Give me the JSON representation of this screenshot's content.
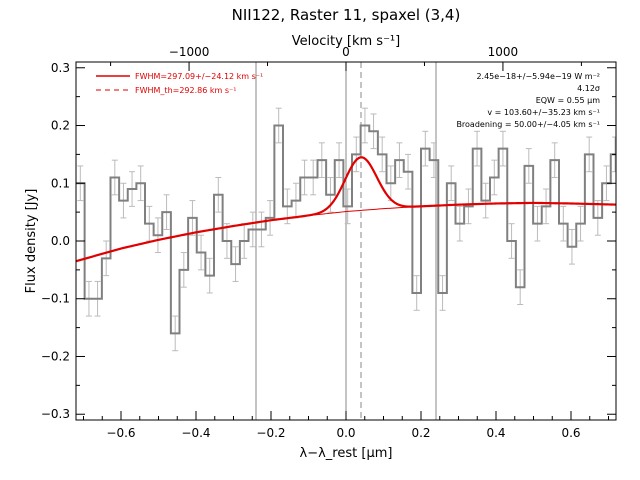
{
  "chart_data": {
    "type": "line",
    "title": "NII122, Raster 11, spaxel (3,4)",
    "xlabel": "λ−λ_rest [μm]",
    "ylabel": "Flux density [Jy]",
    "top_axis_label": "Velocity [km s⁻¹]",
    "xlim": [
      -0.72,
      0.72
    ],
    "ylim": [
      -0.31,
      0.31
    ],
    "x_ticks": [
      -0.6,
      -0.4,
      -0.2,
      0.0,
      0.2,
      0.4,
      0.6
    ],
    "x_tick_labels": [
      "−0.6",
      "−0.4",
      "−0.2",
      "0.0",
      "0.2",
      "0.4",
      "0.6"
    ],
    "y_ticks": [
      -0.3,
      -0.2,
      -0.1,
      0.0,
      0.1,
      0.2,
      0.3
    ],
    "y_tick_labels": [
      "−0.3",
      "−0.2",
      "−0.1",
      "0.0",
      "0.1",
      "0.2",
      "0.3"
    ],
    "top_ticks_x": [
      -0.4185,
      0.0,
      0.4185
    ],
    "top_tick_labels": [
      "−1000",
      "0",
      "1000"
    ],
    "vlines_solid": [
      -0.24,
      0.0,
      0.24
    ],
    "vline_dashed": 0.04,
    "legend": {
      "position": "top-left",
      "items": [
        {
          "label": "FWHM=297.09+/−24.12 km s⁻¹",
          "style": "solid",
          "color": "#e00000"
        },
        {
          "label": "FWHM_th=292.86 km s⁻¹",
          "style": "dashed",
          "color": "#e00000"
        }
      ]
    },
    "annotations": [
      "2.45e−18+/−5.94e−19 W m⁻²",
      "4.12σ",
      "EQW = 0.55 μm",
      "v = 103.60+/−35.23 km s⁻¹",
      "Broadening = 50.00+/−4.05 km s⁻¹"
    ],
    "colors": {
      "data": "#808080",
      "fit": "#e00000"
    },
    "series": [
      {
        "name": "data",
        "x": [
          -0.72,
          -0.697,
          -0.674,
          -0.651,
          -0.628,
          -0.605,
          -0.582,
          -0.559,
          -0.536,
          -0.513,
          -0.49,
          -0.467,
          -0.444,
          -0.421,
          -0.398,
          -0.375,
          -0.352,
          -0.329,
          -0.306,
          -0.283,
          -0.26,
          -0.237,
          -0.214,
          -0.191,
          -0.168,
          -0.145,
          -0.122,
          -0.099,
          -0.076,
          -0.053,
          -0.03,
          -0.007,
          0.016,
          0.039,
          0.062,
          0.085,
          0.108,
          0.131,
          0.154,
          0.177,
          0.2,
          0.223,
          0.246,
          0.269,
          0.292,
          0.315,
          0.338,
          0.361,
          0.384,
          0.407,
          0.43,
          0.453,
          0.476,
          0.499,
          0.522,
          0.545,
          0.568,
          0.591,
          0.614,
          0.637,
          0.66,
          0.683,
          0.706
        ],
        "y": [
          0.1,
          -0.1,
          -0.1,
          -0.03,
          0.11,
          0.07,
          0.09,
          0.1,
          0.03,
          0.01,
          0.05,
          -0.16,
          -0.05,
          0.04,
          -0.02,
          -0.06,
          0.08,
          0.0,
          -0.04,
          0.0,
          0.02,
          0.02,
          0.04,
          0.2,
          0.06,
          0.07,
          0.11,
          0.11,
          0.14,
          0.08,
          0.14,
          0.06,
          0.15,
          0.2,
          0.19,
          0.15,
          0.1,
          0.14,
          0.12,
          -0.09,
          0.16,
          0.14,
          -0.09,
          0.1,
          0.03,
          0.06,
          0.16,
          0.07,
          0.11,
          0.16,
          0.0,
          -0.08,
          0.13,
          0.03,
          0.06,
          0.14,
          0.03,
          -0.01,
          0.03,
          0.15,
          0.04,
          0.1,
          0.15
        ],
        "error": [
          0.03,
          0.03,
          0.03,
          0.03,
          0.03,
          0.03,
          0.03,
          0.03,
          0.03,
          0.03,
          0.03,
          0.03,
          0.03,
          0.03,
          0.03,
          0.03,
          0.03,
          0.03,
          0.03,
          0.03,
          0.03,
          0.03,
          0.03,
          0.03,
          0.03,
          0.03,
          0.03,
          0.03,
          0.03,
          0.03,
          0.03,
          0.03,
          0.03,
          0.03,
          0.03,
          0.03,
          0.03,
          0.03,
          0.03,
          0.03,
          0.03,
          0.03,
          0.03,
          0.03,
          0.03,
          0.03,
          0.03,
          0.03,
          0.03,
          0.03,
          0.03,
          0.03,
          0.03,
          0.03,
          0.03,
          0.03,
          0.03,
          0.03,
          0.03,
          0.03,
          0.03,
          0.03,
          0.03
        ]
      },
      {
        "name": "continuum",
        "x": [
          -0.72,
          -0.6,
          -0.5,
          -0.4,
          -0.3,
          -0.2,
          -0.1,
          0.0,
          0.1,
          0.2,
          0.3,
          0.4,
          0.5,
          0.6,
          0.72
        ],
        "y": [
          -0.035,
          -0.013,
          0.002,
          0.015,
          0.026,
          0.036,
          0.044,
          0.051,
          0.056,
          0.06,
          0.063,
          0.065,
          0.066,
          0.065,
          0.063
        ]
      },
      {
        "name": "line fit",
        "profile": "gaussian",
        "center": 0.04,
        "peak": 0.092,
        "sigma": 0.042
      }
    ]
  }
}
